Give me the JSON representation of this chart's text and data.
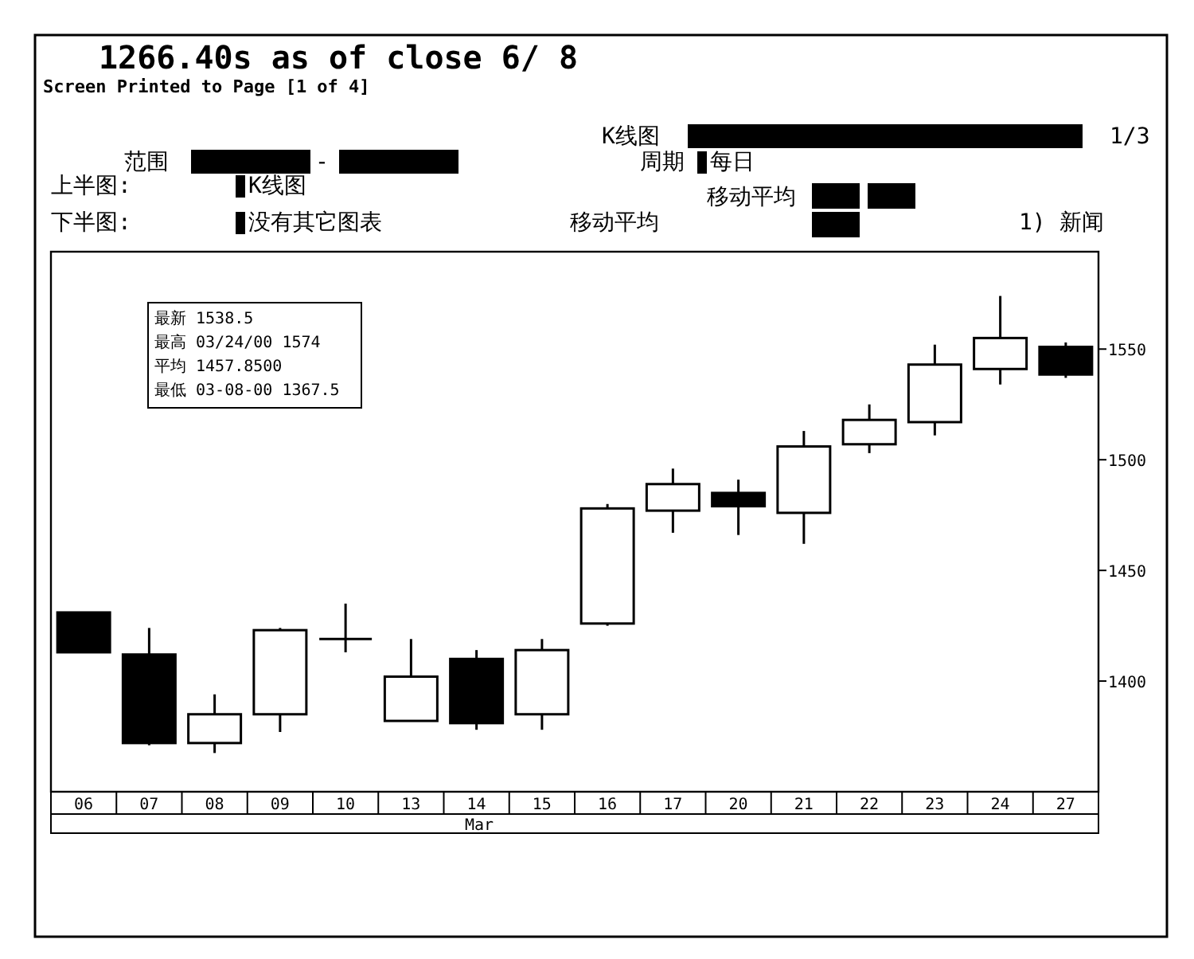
{
  "chart_data": {
    "type": "candlestick",
    "title": "1266.40s as of close 6/ 8",
    "subtitle": "Screen Printed to Page [1 of 4]",
    "xlabel": "Mar",
    "categories": [
      "06",
      "07",
      "08",
      "09",
      "10",
      "13",
      "14",
      "15",
      "16",
      "17",
      "20",
      "21",
      "22",
      "23",
      "24",
      "27"
    ],
    "ohlc": [
      [
        1431,
        1431,
        1413,
        1413
      ],
      [
        1412,
        1424,
        1371,
        1372
      ],
      [
        1372,
        1394,
        1367.5,
        1385
      ],
      [
        1385,
        1424,
        1377,
        1423
      ],
      [
        1419,
        1435,
        1413,
        1419
      ],
      [
        1382,
        1419,
        1382,
        1402
      ],
      [
        1410,
        1414,
        1378,
        1381
      ],
      [
        1385,
        1419,
        1378,
        1414
      ],
      [
        1426,
        1480,
        1425,
        1478
      ],
      [
        1477,
        1496,
        1467,
        1489
      ],
      [
        1485,
        1491,
        1466,
        1479
      ],
      [
        1476,
        1513,
        1462,
        1506
      ],
      [
        1507,
        1525,
        1503,
        1518
      ],
      [
        1517,
        1552,
        1511,
        1543
      ],
      [
        1541,
        1574,
        1534,
        1555
      ],
      [
        1551,
        1553,
        1537,
        1538.5
      ]
    ],
    "color": "#000000",
    "ylim": [
      1350,
      1594
    ],
    "yticks": [
      1400,
      1450,
      1500,
      1550
    ],
    "annotations": [
      "K线图",
      "1/3",
      "范围",
      "-",
      "周期",
      "每日",
      "上半图:",
      "K线图",
      "移动平均",
      "下半图:",
      "没有其它图表",
      "移动平均",
      "1) 新闻",
      "最新  1538.5",
      "最高  03/24/00 1574",
      "平均 1457.8500",
      "最低  03-08-00 1367.5"
    ]
  }
}
